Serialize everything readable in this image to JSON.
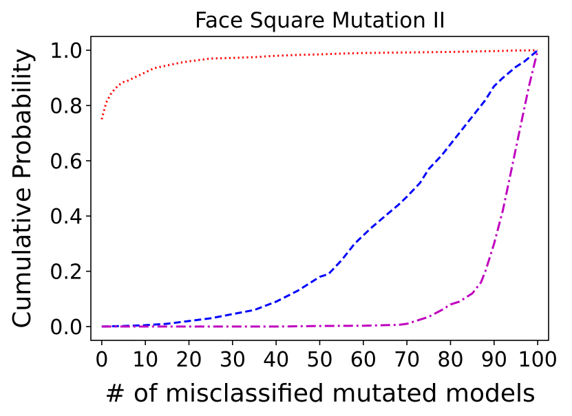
{
  "chart_data": {
    "type": "line",
    "title": "Face Square Mutation II",
    "xlabel": "# of misclassified mutated models",
    "ylabel": "Cumulative Probability",
    "xlim": [
      -2.5,
      102.5
    ],
    "ylim": [
      -0.05,
      1.05
    ],
    "xticks": [
      0,
      10,
      20,
      30,
      40,
      50,
      60,
      70,
      80,
      90,
      100
    ],
    "yticks": [
      0.0,
      0.2,
      0.4,
      0.6,
      0.8,
      1.0
    ],
    "xtick_labels": [
      "0",
      "10",
      "20",
      "30",
      "40",
      "50",
      "60",
      "70",
      "80",
      "90",
      "100"
    ],
    "ytick_labels": [
      "0.0",
      "0.2",
      "0.4",
      "0.6",
      "0.8",
      "1.0"
    ],
    "grid": false,
    "series": [
      {
        "color": "#ff0000",
        "linestyle": "dotted",
        "x": [
          0,
          1,
          2,
          3,
          4,
          5,
          6,
          8,
          10,
          12,
          15,
          18,
          20,
          25,
          30,
          35,
          40,
          45,
          50,
          55,
          60,
          70,
          80,
          90,
          95,
          100
        ],
        "y": [
          0.75,
          0.81,
          0.84,
          0.86,
          0.875,
          0.885,
          0.89,
          0.905,
          0.92,
          0.935,
          0.945,
          0.955,
          0.96,
          0.97,
          0.972,
          0.975,
          0.98,
          0.983,
          0.985,
          0.988,
          0.99,
          0.992,
          0.994,
          0.997,
          0.999,
          1.0
        ]
      },
      {
        "color": "#0000ff",
        "linestyle": "dashed",
        "x": [
          0,
          5,
          10,
          15,
          20,
          25,
          30,
          35,
          40,
          45,
          50,
          52,
          55,
          58,
          60,
          62,
          65,
          68,
          70,
          73,
          75,
          78,
          80,
          83,
          85,
          88,
          90,
          92,
          95,
          97,
          100
        ],
        "y": [
          0.0,
          0.002,
          0.005,
          0.01,
          0.02,
          0.03,
          0.045,
          0.06,
          0.09,
          0.13,
          0.18,
          0.19,
          0.24,
          0.3,
          0.33,
          0.36,
          0.4,
          0.44,
          0.47,
          0.52,
          0.57,
          0.62,
          0.66,
          0.72,
          0.76,
          0.82,
          0.87,
          0.9,
          0.94,
          0.96,
          1.0
        ]
      },
      {
        "color": "#bf00bf",
        "linestyle": "dashdot",
        "x": [
          0,
          20,
          40,
          50,
          60,
          65,
          68,
          70,
          72,
          75,
          78,
          80,
          82,
          85,
          87,
          88,
          90,
          92,
          94,
          96,
          98,
          100
        ],
        "y": [
          0.0,
          0.0,
          0.0,
          0.002,
          0.003,
          0.005,
          0.006,
          0.01,
          0.02,
          0.035,
          0.06,
          0.08,
          0.09,
          0.12,
          0.16,
          0.2,
          0.3,
          0.42,
          0.57,
          0.72,
          0.87,
          1.0
        ]
      }
    ]
  }
}
